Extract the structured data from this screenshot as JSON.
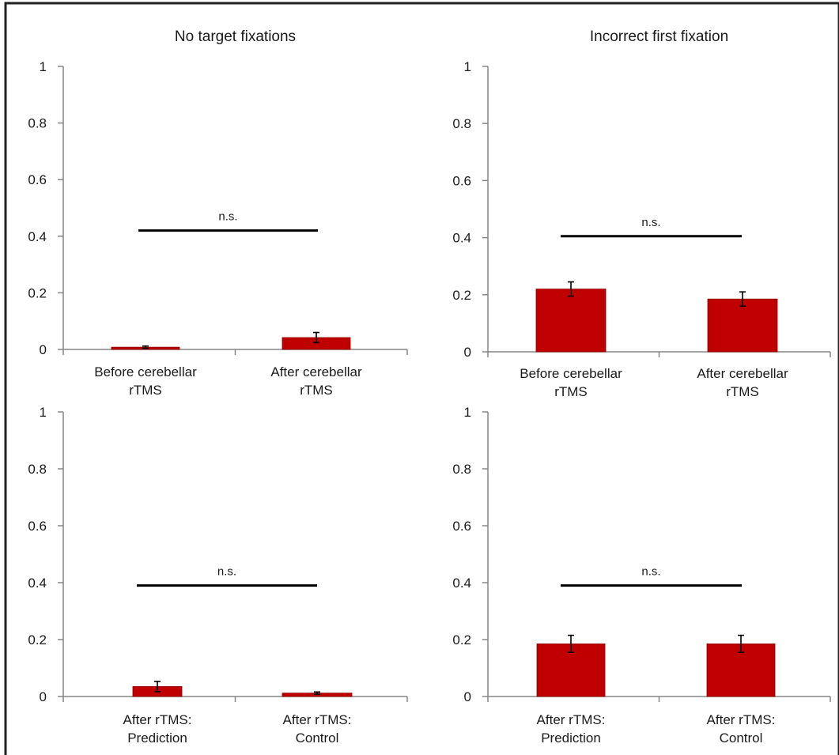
{
  "colors": {
    "bar": "#c00000",
    "bar_edge": "#8c0000",
    "axis": "#868686",
    "text": "#1a1a1a",
    "sig_line": "#000000",
    "error_bar": "#000000"
  },
  "chart_data": [
    {
      "type": "bar",
      "title": "No target fixations",
      "categories": [
        "Before cerebellar\nrTMS",
        "After cerebellar\nrTMS"
      ],
      "values": [
        0.008,
        0.042
      ],
      "errors": [
        0.004,
        0.018
      ],
      "ylim": [
        0,
        1
      ],
      "yticks": [
        "0",
        "0.2",
        "0.4",
        "0.6",
        "0.8",
        "1"
      ],
      "significance": {
        "label": "n.s.",
        "y": 0.42
      },
      "grid": false
    },
    {
      "type": "bar",
      "title": "Incorrect first fixation",
      "categories": [
        "Before cerebellar\nrTMS",
        "After cerebellar\nrTMS"
      ],
      "values": [
        0.22,
        0.185
      ],
      "errors": [
        0.025,
        0.025
      ],
      "ylim": [
        0,
        1
      ],
      "yticks": [
        "0",
        "0.2",
        "0.4",
        "0.6",
        "0.8",
        "1"
      ],
      "significance": {
        "label": "n.s.",
        "y": 0.405
      },
      "grid": false
    },
    {
      "type": "bar",
      "title": "",
      "categories": [
        "After rTMS:\nPrediction",
        "After rTMS:\nControl"
      ],
      "values": [
        0.035,
        0.012
      ],
      "errors": [
        0.018,
        0.004
      ],
      "ylim": [
        0,
        1
      ],
      "yticks": [
        "0",
        "0.2",
        "0.4",
        "0.6",
        "0.8",
        "1"
      ],
      "significance": {
        "label": "n.s.",
        "y": 0.39
      },
      "grid": false
    },
    {
      "type": "bar",
      "title": "",
      "categories": [
        "After rTMS:\nPrediction",
        "After rTMS:\nControl"
      ],
      "values": [
        0.185,
        0.185
      ],
      "errors": [
        0.03,
        0.03
      ],
      "ylim": [
        0,
        1
      ],
      "yticks": [
        "0",
        "0.2",
        "0.4",
        "0.6",
        "0.8",
        "1"
      ],
      "significance": {
        "label": "n.s.",
        "y": 0.39
      },
      "grid": false
    }
  ]
}
